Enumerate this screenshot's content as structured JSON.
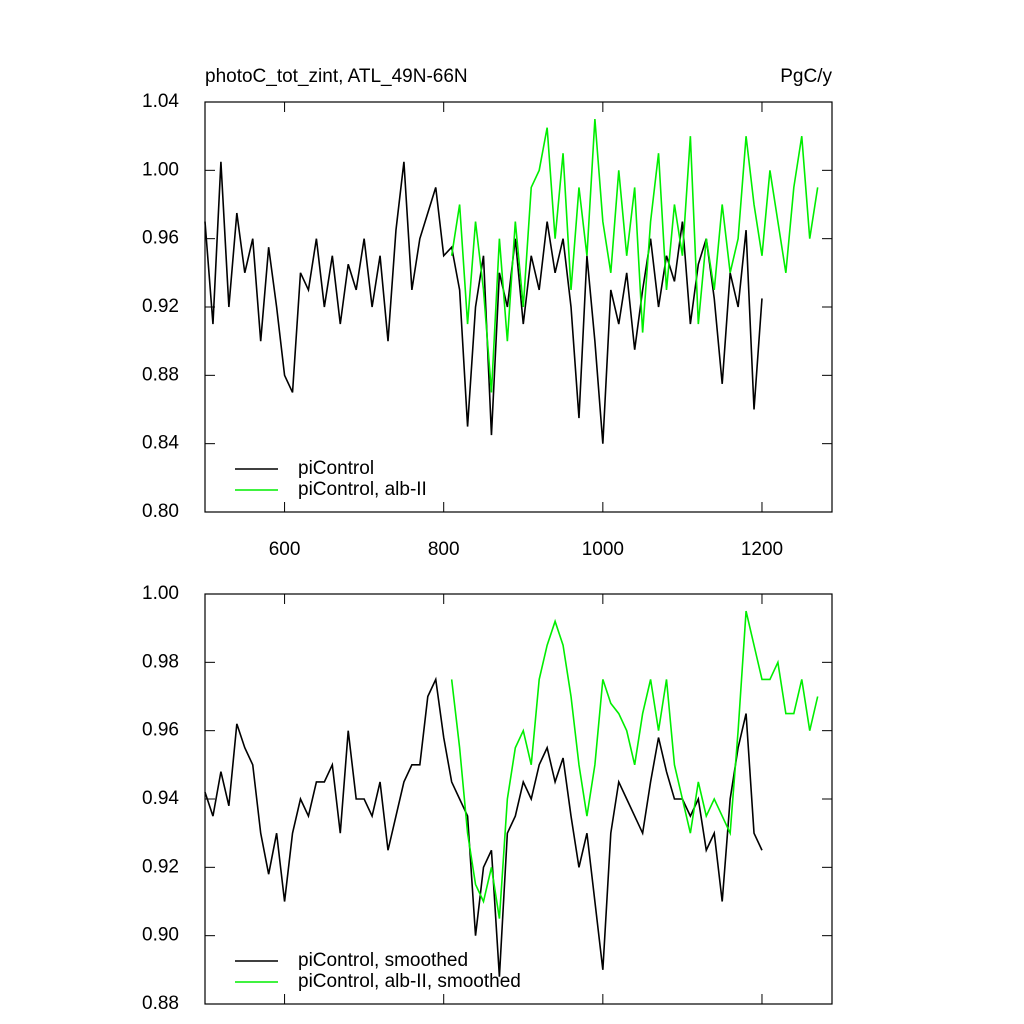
{
  "chart_data": [
    {
      "type": "line",
      "title": "photoC_tot_zint, ATL_49N-66N",
      "units": "PgC/y",
      "xlim": [
        500,
        1288
      ],
      "xticks": [
        600,
        800,
        1000,
        1200
      ],
      "xtick_labels": true,
      "ylim": [
        0.8,
        1.04
      ],
      "yticks": [
        {
          "value": 0.8,
          "label": "0.80"
        },
        0.84,
        0.88,
        0.92,
        0.96,
        {
          "value": 1,
          "label": "1.00"
        },
        1.04
      ],
      "legend": "lower left",
      "series": [
        {
          "name": "piControl",
          "color": "#000000",
          "x": [
            500,
            510,
            520,
            530,
            540,
            550,
            560,
            570,
            580,
            590,
            600,
            610,
            620,
            630,
            640,
            650,
            660,
            670,
            680,
            690,
            700,
            710,
            720,
            730,
            740,
            750,
            760,
            770,
            780,
            790,
            800,
            810,
            820,
            830,
            840,
            850,
            860,
            870,
            880,
            890,
            900,
            910,
            920,
            930,
            940,
            950,
            960,
            970,
            980,
            990,
            1000,
            1010,
            1020,
            1030,
            1040,
            1050,
            1060,
            1070,
            1080,
            1090,
            1100,
            1110,
            1120,
            1130,
            1140,
            1150,
            1160,
            1170,
            1180,
            1190,
            1200
          ],
          "values": [
            0.97,
            0.91,
            1.005,
            0.92,
            0.975,
            0.94,
            0.96,
            0.9,
            0.955,
            0.92,
            0.88,
            0.87,
            0.94,
            0.93,
            0.96,
            0.92,
            0.95,
            0.91,
            0.945,
            0.93,
            0.96,
            0.92,
            0.95,
            0.9,
            0.965,
            1.005,
            0.93,
            0.96,
            0.975,
            0.99,
            0.95,
            0.955,
            0.93,
            0.85,
            0.92,
            0.95,
            0.845,
            0.94,
            0.92,
            0.96,
            0.91,
            0.95,
            0.93,
            0.97,
            0.94,
            0.96,
            0.92,
            0.855,
            0.95,
            0.9,
            0.84,
            0.93,
            0.91,
            0.94,
            0.895,
            0.93,
            0.96,
            0.92,
            0.95,
            0.935,
            0.97,
            0.91,
            0.945,
            0.96,
            0.925,
            0.875,
            0.94,
            0.92,
            0.965,
            0.86,
            0.925
          ]
        },
        {
          "name": "piControl, alb-II",
          "color": "#00ee00",
          "x": [
            810,
            820,
            830,
            840,
            850,
            860,
            870,
            880,
            890,
            900,
            910,
            920,
            930,
            940,
            950,
            960,
            970,
            980,
            990,
            1000,
            1010,
            1020,
            1030,
            1040,
            1050,
            1060,
            1070,
            1080,
            1090,
            1100,
            1110,
            1120,
            1130,
            1140,
            1150,
            1160,
            1170,
            1180,
            1190,
            1200,
            1210,
            1220,
            1230,
            1240,
            1250,
            1260,
            1270
          ],
          "values": [
            0.95,
            0.98,
            0.91,
            0.97,
            0.93,
            0.87,
            0.96,
            0.9,
            0.97,
            0.92,
            0.99,
            1.0,
            1.025,
            0.96,
            1.01,
            0.93,
            0.99,
            0.95,
            1.03,
            0.97,
            0.94,
            1.0,
            0.95,
            0.99,
            0.905,
            0.97,
            1.01,
            0.93,
            0.98,
            0.95,
            1.02,
            0.91,
            0.96,
            0.93,
            0.98,
            0.94,
            0.96,
            1.02,
            0.98,
            0.95,
            1.0,
            0.97,
            0.94,
            0.99,
            1.02,
            0.96,
            0.99
          ]
        }
      ]
    },
    {
      "type": "line",
      "xlim": [
        500,
        1288
      ],
      "xticks": [
        600,
        800,
        1000,
        1200
      ],
      "xtick_labels": false,
      "ylim": [
        0.88,
        1.0
      ],
      "yticks": [
        0.88,
        {
          "value": 0.9,
          "label": "0.90"
        },
        0.92,
        0.94,
        0.96,
        0.98,
        {
          "value": 1,
          "label": "1.00"
        }
      ],
      "legend": "lower left",
      "series": [
        {
          "name": "piControl, smoothed",
          "color": "#000000",
          "x": [
            500,
            510,
            520,
            530,
            540,
            550,
            560,
            570,
            580,
            590,
            600,
            610,
            620,
            630,
            640,
            650,
            660,
            670,
            680,
            690,
            700,
            710,
            720,
            730,
            740,
            750,
            760,
            770,
            780,
            790,
            800,
            810,
            820,
            830,
            840,
            850,
            860,
            870,
            880,
            890,
            900,
            910,
            920,
            930,
            940,
            950,
            960,
            970,
            980,
            990,
            1000,
            1010,
            1020,
            1030,
            1040,
            1050,
            1060,
            1070,
            1080,
            1090,
            1100,
            1110,
            1120,
            1130,
            1140,
            1150,
            1160,
            1170,
            1180,
            1190,
            1200
          ],
          "values": [
            0.942,
            0.935,
            0.948,
            0.938,
            0.962,
            0.955,
            0.95,
            0.93,
            0.918,
            0.93,
            0.91,
            0.93,
            0.94,
            0.935,
            0.945,
            0.945,
            0.95,
            0.93,
            0.96,
            0.94,
            0.94,
            0.935,
            0.945,
            0.925,
            0.935,
            0.945,
            0.95,
            0.95,
            0.97,
            0.975,
            0.958,
            0.945,
            0.94,
            0.935,
            0.9,
            0.92,
            0.925,
            0.888,
            0.93,
            0.935,
            0.945,
            0.94,
            0.95,
            0.955,
            0.945,
            0.952,
            0.935,
            0.92,
            0.93,
            0.91,
            0.89,
            0.93,
            0.945,
            0.94,
            0.935,
            0.93,
            0.945,
            0.958,
            0.948,
            0.94,
            0.94,
            0.935,
            0.94,
            0.925,
            0.93,
            0.91,
            0.94,
            0.955,
            0.965,
            0.93,
            0.925
          ]
        },
        {
          "name": "piControl, alb-II, smoothed",
          "color": "#00ee00",
          "x": [
            810,
            820,
            830,
            840,
            850,
            860,
            870,
            880,
            890,
            900,
            910,
            920,
            930,
            940,
            950,
            960,
            970,
            980,
            990,
            1000,
            1010,
            1020,
            1030,
            1040,
            1050,
            1060,
            1070,
            1080,
            1090,
            1100,
            1110,
            1120,
            1130,
            1140,
            1150,
            1160,
            1170,
            1180,
            1190,
            1200,
            1210,
            1220,
            1230,
            1240,
            1250,
            1260,
            1270
          ],
          "values": [
            0.975,
            0.955,
            0.93,
            0.915,
            0.91,
            0.92,
            0.905,
            0.94,
            0.955,
            0.96,
            0.95,
            0.975,
            0.985,
            0.992,
            0.985,
            0.97,
            0.95,
            0.935,
            0.95,
            0.975,
            0.968,
            0.965,
            0.96,
            0.95,
            0.965,
            0.975,
            0.96,
            0.975,
            0.95,
            0.94,
            0.93,
            0.945,
            0.935,
            0.94,
            0.935,
            0.93,
            0.96,
            0.995,
            0.985,
            0.975,
            0.975,
            0.98,
            0.965,
            0.965,
            0.975,
            0.96,
            0.97
          ]
        }
      ]
    }
  ]
}
